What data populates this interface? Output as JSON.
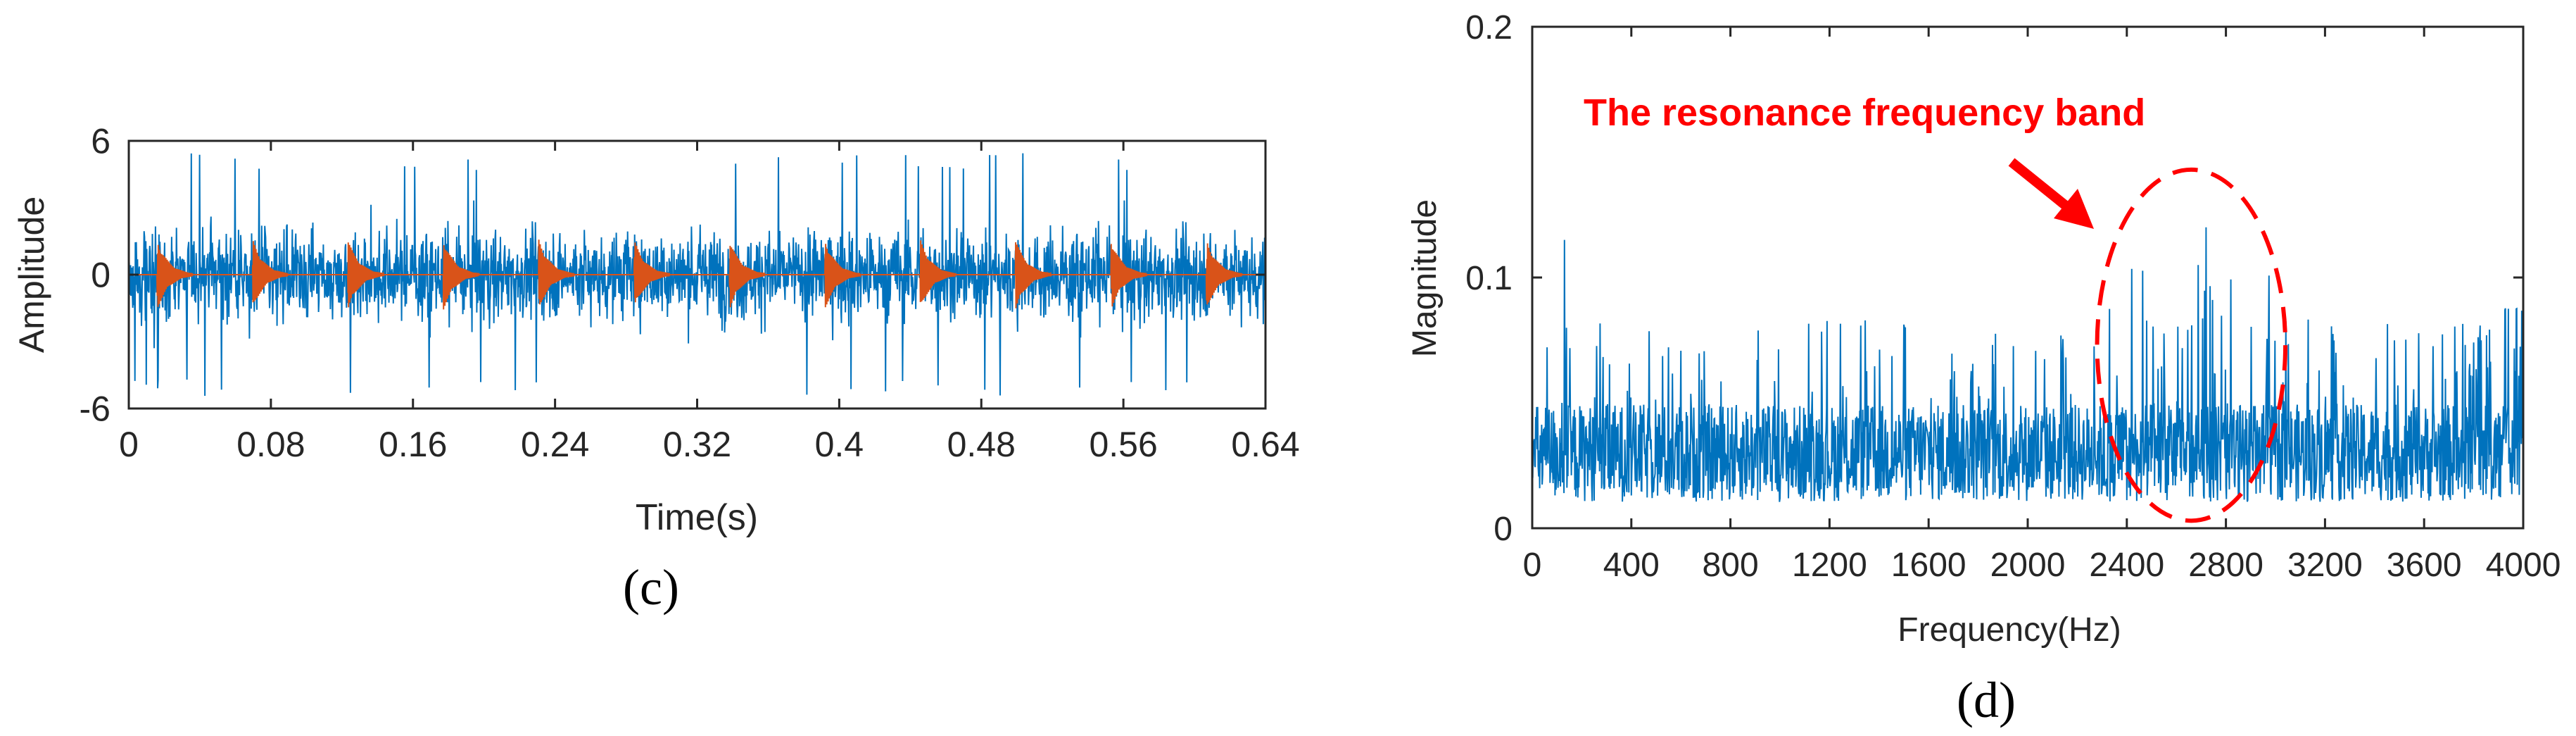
{
  "chart_data": [
    {
      "type": "line",
      "panel_label": "(c)",
      "xlabel": "Time(s)",
      "ylabel": "Amplitude",
      "xlim": [
        0,
        0.64
      ],
      "ylim": [
        -6,
        6
      ],
      "xticks": [
        "0",
        "0.08",
        "0.16",
        "0.24",
        "0.32",
        "0.4",
        "0.48",
        "0.56",
        "0.64"
      ],
      "yticks": [
        "-6",
        "0",
        "6"
      ],
      "grid": false,
      "series": [
        {
          "role": "noisy vibration signal",
          "color": "#0072BD",
          "typical_amplitude": 2.5,
          "peak_amplitude": 5.5,
          "min_value": -6
        },
        {
          "role": "periodic impulse signal",
          "color": "#D95319",
          "impulse_period_s": 0.0537,
          "first_impulse_s": 0.016,
          "impulse_peak_amplitude": 1.6
        }
      ]
    },
    {
      "type": "line",
      "panel_label": "(d)",
      "xlabel": "Frequency(Hz)",
      "ylabel": "Magnitude",
      "xlim": [
        0,
        4000
      ],
      "ylim": [
        0,
        0.2
      ],
      "xticks": [
        "0",
        "400",
        "800",
        "1200",
        "1600",
        "2000",
        "2400",
        "2800",
        "3200",
        "3600",
        "4000"
      ],
      "yticks": [
        "0",
        "0.1",
        "0.2"
      ],
      "grid": false,
      "series": [
        {
          "role": "amplitude spectrum",
          "color": "#0072BD",
          "baseline_level": 0.03,
          "max_value": 0.12,
          "max_value_at_hz": 2720
        }
      ],
      "annotation": {
        "text": "The resonance frequency band",
        "color": "#FF0000",
        "ellipse_center_hz": 2660,
        "ellipse_halfwidth_hz": 380,
        "ellipse_center_mag": 0.073,
        "ellipse_halfheight_mag": 0.07
      }
    }
  ]
}
